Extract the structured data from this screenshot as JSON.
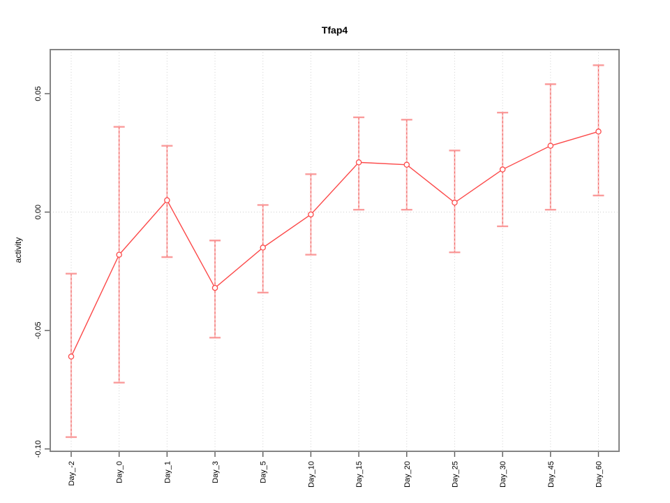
{
  "title": "Tfap4",
  "colors": {
    "line": "#fc4a4a",
    "marker": "#fc4a4a",
    "error_bar": "#f99090",
    "error_bar_core": "#ef5350",
    "grid": "#d2d2d2",
    "zero_line": "#cdcdcd",
    "box": "#848484",
    "tick": "#5a5a5a",
    "text": "#000000",
    "background": "#ffffff"
  },
  "chart_data": {
    "type": "line",
    "title": "Tfap4",
    "xlabel": "",
    "ylabel": "activity",
    "categories": [
      "Day_-2",
      "Day_0",
      "Day_1",
      "Day_3",
      "Day_5",
      "Day_10",
      "Day_15",
      "Day_20",
      "Day_25",
      "Day_30",
      "Day_45",
      "Day_60"
    ],
    "series": [
      {
        "name": "activity",
        "marker": "open-circle",
        "values": [
          -0.061,
          -0.018,
          0.005,
          -0.032,
          -0.015,
          -0.001,
          0.021,
          0.02,
          0.004,
          0.018,
          0.028,
          0.034
        ],
        "error_low": [
          -0.095,
          -0.072,
          -0.019,
          -0.053,
          -0.034,
          -0.018,
          0.001,
          0.001,
          -0.017,
          -0.006,
          0.001,
          0.007
        ],
        "error_high": [
          -0.026,
          0.036,
          0.028,
          -0.012,
          0.003,
          0.016,
          0.04,
          0.039,
          0.026,
          0.042,
          0.054,
          0.062
        ]
      }
    ],
    "yticks": [
      0.05,
      0.0,
      -0.05,
      -0.1
    ],
    "ytick_labels": [
      "0.05",
      "0.00",
      "-0.05",
      "-0.10"
    ],
    "ylim": [
      -0.101,
      0.0686
    ],
    "grid": "vertical dotted line at each category; horizontal dotted line at y=0 only",
    "legend": "none"
  }
}
